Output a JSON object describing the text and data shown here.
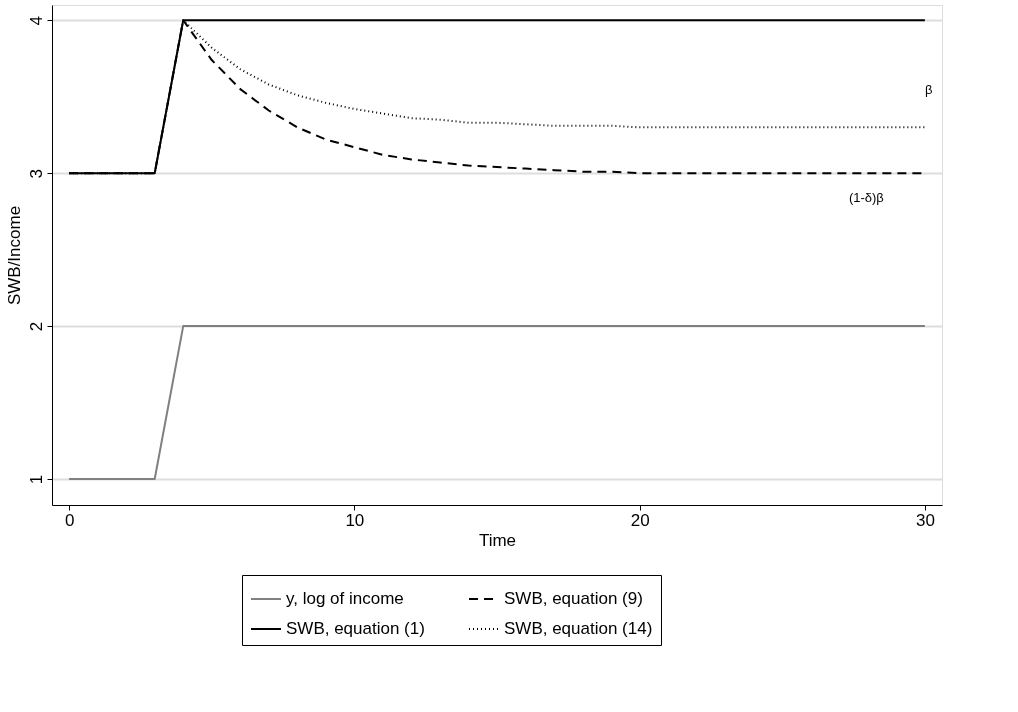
{
  "chart_data": {
    "type": "line",
    "xlabel": "Time",
    "ylabel": "SWB/Income",
    "x": [
      0,
      1,
      2,
      3,
      4,
      5,
      6,
      7,
      8,
      9,
      10,
      11,
      12,
      13,
      14,
      15,
      16,
      17,
      18,
      19,
      20,
      21,
      22,
      23,
      24,
      25,
      26,
      27,
      28,
      29,
      30
    ],
    "series": [
      {
        "name": "y, log of income",
        "color": "#808080",
        "line_style": "solid",
        "values": [
          1,
          1,
          1,
          1,
          2,
          2,
          2,
          2,
          2,
          2,
          2,
          2,
          2,
          2,
          2,
          2,
          2,
          2,
          2,
          2,
          2,
          2,
          2,
          2,
          2,
          2,
          2,
          2,
          2,
          2,
          2
        ]
      },
      {
        "name": "SWB, equation (1)",
        "color": "#000000",
        "line_style": "solid",
        "values": [
          3,
          3,
          3,
          3,
          4,
          4,
          4,
          4,
          4,
          4,
          4,
          4,
          4,
          4,
          4,
          4,
          4,
          4,
          4,
          4,
          4,
          4,
          4,
          4,
          4,
          4,
          4,
          4,
          4,
          4,
          4
        ]
      },
      {
        "name": "SWB, equation (9)",
        "color": "#000000",
        "line_style": "dashed",
        "values": [
          3,
          3,
          3,
          3,
          4,
          3.74,
          3.55,
          3.41,
          3.3,
          3.22,
          3.17,
          3.12,
          3.09,
          3.07,
          3.05,
          3.04,
          3.03,
          3.02,
          3.01,
          3.01,
          3,
          3,
          3,
          3,
          3,
          3,
          3,
          3,
          3,
          3,
          3
        ]
      },
      {
        "name": "SWB, equation (14)",
        "color": "#000000",
        "line_style": "dotted",
        "values": [
          3,
          3,
          3,
          3,
          4,
          3.82,
          3.68,
          3.58,
          3.51,
          3.46,
          3.42,
          3.39,
          3.36,
          3.35,
          3.33,
          3.33,
          3.32,
          3.31,
          3.31,
          3.31,
          3.3,
          3.3,
          3.3,
          3.3,
          3.3,
          3.3,
          3.3,
          3.3,
          3.3,
          3.3,
          3.3
        ]
      }
    ],
    "xlim": [
      -0.6,
      30.6
    ],
    "xticks": [
      0,
      10,
      20,
      30
    ],
    "ylim": [
      0.83,
      4.1
    ],
    "yticks": [
      1,
      2,
      3,
      4
    ],
    "grid": "y",
    "legend": "bottom",
    "annotations": [
      "β",
      "(1-δ)β"
    ]
  }
}
